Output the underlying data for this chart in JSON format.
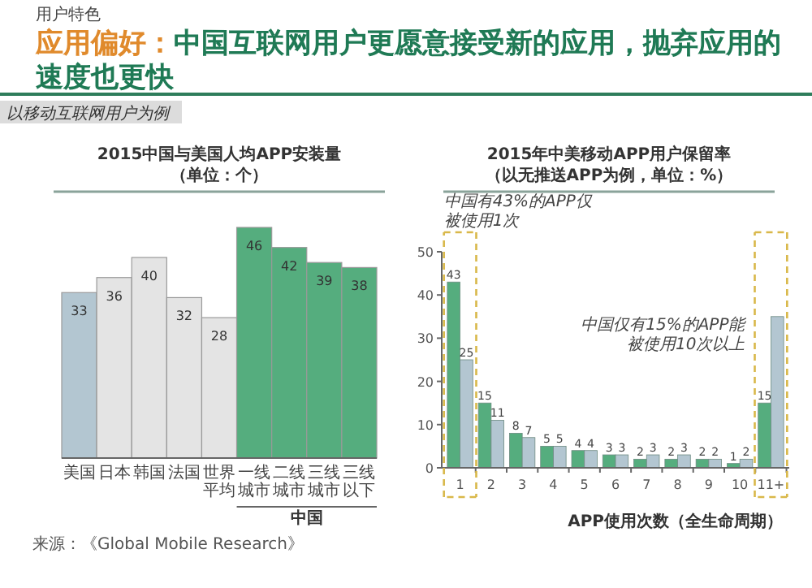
{
  "chart_data": [
    {
      "type": "other",
      "title": "应用偏好：中国互联网用户更愿意接受新的应用，抛弃应用的速度也更快",
      "subtitle": "以移动互联网用户为例",
      "annotations": [
        "用户特色"
      ]
    },
    {
      "type": "bar",
      "title": "2015中国与美国人均APP安装量",
      "subtitle": "（单位：个）",
      "categories": [
        "美国",
        "日本",
        "韩国",
        "法国",
        "世界平均",
        "一线城市",
        "二线城市",
        "三线城市",
        "三线以下"
      ],
      "values": [
        33,
        36,
        40,
        32,
        28,
        46,
        42,
        39,
        38
      ],
      "colors": [
        "#b3c6d1",
        "#e4e4e4",
        "#e4e4e4",
        "#e4e4e4",
        "#e4e4e4",
        "#55ad7e",
        "#55ad7e",
        "#55ad7e",
        "#55ad7e"
      ],
      "data_labels": true,
      "annotations": [
        "中国",
        "来源：《Global Mobile Research》"
      ]
    },
    {
      "type": "bar",
      "title": "2015年中美移动APP用户保留率",
      "subtitle": "（以无推送APP为例，单位：%）",
      "xlabel": "APP使用次数（全生命周期）",
      "categories": [
        "1",
        "2",
        "3",
        "4",
        "5",
        "6",
        "7",
        "8",
        "9",
        "10",
        "11+"
      ],
      "series": [
        {
          "color": "#55ad7e",
          "values": [
            43,
            15,
            8,
            5,
            4,
            3,
            2,
            2,
            2,
            1,
            15
          ],
          "value_labels": [
            "43",
            "15",
            "8",
            "5",
            "4",
            "3",
            "2",
            "2",
            "2",
            "1",
            "15"
          ]
        },
        {
          "color": "#b3c6d1",
          "values": [
            25,
            11,
            7,
            5,
            4,
            3,
            3,
            3,
            2,
            2,
            35
          ],
          "value_labels": [
            "25",
            "11",
            "7",
            "5",
            "4",
            "3",
            "3",
            "3",
            "2",
            "2",
            null
          ]
        }
      ],
      "ylim": [
        0,
        50
      ],
      "yticks": [
        0,
        10,
        20,
        30,
        40,
        50
      ],
      "grid": false,
      "annotations": [
        "中国有43%的APP仅被使用1次",
        "中国仅有15%的APP能被使用10次以上"
      ]
    }
  ]
}
